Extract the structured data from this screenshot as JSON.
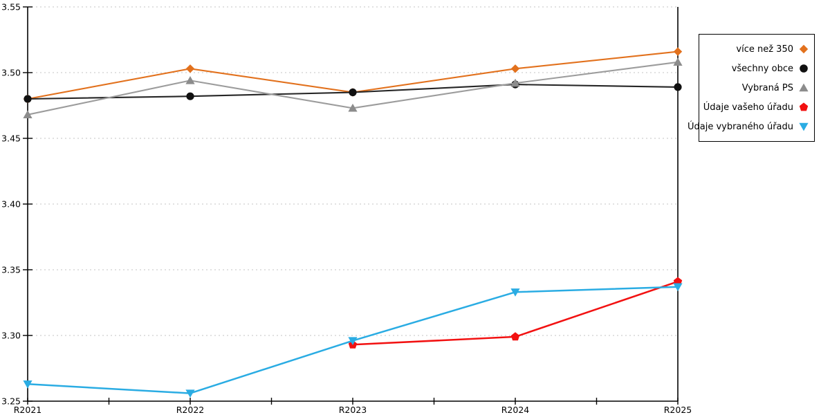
{
  "chart_data": {
    "type": "line",
    "title": "",
    "xlabel": "",
    "ylabel": "",
    "categories": [
      "R2021",
      "R2022",
      "R2023",
      "R2024",
      "R2025"
    ],
    "yticks": [
      3.25,
      3.3,
      3.35,
      3.4,
      3.45,
      3.5,
      3.55
    ],
    "ylim": [
      3.25,
      3.55
    ],
    "grid": "horizontal-dotted",
    "grid_color": "#c3c3c3",
    "axis_color": "#000000",
    "legend_position": "top-right",
    "series": [
      {
        "name": "více než 350",
        "marker": "diamond",
        "color": "#E2711D",
        "line_color": "#E2711D",
        "values": [
          3.48,
          3.503,
          3.485,
          3.503,
          3.516
        ]
      },
      {
        "name": "všechny obce",
        "marker": "circle",
        "color": "#111111",
        "line_color": "#262626",
        "values": [
          3.48,
          3.482,
          3.485,
          3.491,
          3.489
        ]
      },
      {
        "name": "Vybraná PS",
        "marker": "triangle-up",
        "color": "#8C8C8C",
        "line_color": "#9C9C9C",
        "values": [
          3.468,
          3.494,
          3.473,
          3.492,
          3.508
        ]
      },
      {
        "name": "Údaje vašeho úřadu",
        "marker": "pentagon",
        "color": "#F21111",
        "line_color": "#F21111",
        "values": [
          null,
          null,
          3.293,
          3.299,
          3.341
        ]
      },
      {
        "name": "Údaje vybraného úřadu",
        "marker": "triangle-down",
        "color": "#2AACE3",
        "line_color": "#2AACE3",
        "values": [
          3.263,
          3.256,
          3.296,
          3.333,
          3.337
        ]
      }
    ]
  }
}
